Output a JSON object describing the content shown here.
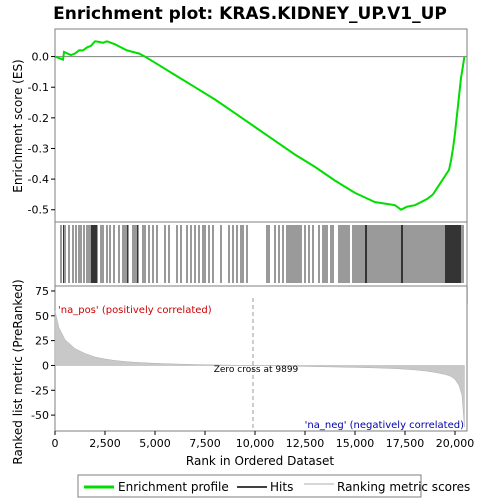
{
  "chart_data": {
    "type": "line",
    "title": "Enrichment plot: KRAS.KIDNEY_UP.V1_UP",
    "xlabel": "Rank in Ordered Dataset",
    "es_ylabel": "Enrichment score (ES)",
    "metric_ylabel": "Ranked list metric (PreRanked)",
    "x_ticks": [
      "0",
      "2,500",
      "5,000",
      "7,500",
      "10,000",
      "12,500",
      "15,000",
      "17,500",
      "20,000"
    ],
    "x_tick_values": [
      0,
      2500,
      5000,
      7500,
      10000,
      12500,
      15000,
      17500,
      20000
    ],
    "xlim": [
      0,
      20600
    ],
    "es_ylim": [
      -0.54,
      0.09
    ],
    "es_ticks": [
      "0.0",
      "-0.1",
      "-0.2",
      "-0.3",
      "-0.4",
      "-0.5"
    ],
    "es_tick_values": [
      0.0,
      -0.1,
      -0.2,
      -0.3,
      -0.4,
      -0.5
    ],
    "metric_ylim": [
      -66,
      80
    ],
    "metric_ticks": [
      "75",
      "50",
      "25",
      "0",
      "-25",
      "-50"
    ],
    "metric_tick_values": [
      75,
      50,
      25,
      0,
      -25,
      -50
    ],
    "zero_cross_rank": 9899,
    "zero_cross_label": "Zero cross at 9899",
    "pos_label": "'na_pos' (positively correlated)",
    "neg_label": "'na_neg' (negatively correlated)",
    "series": [
      {
        "name": "Enrichment profile",
        "color": "#00dd00",
        "x": [
          0,
          400,
          450,
          800,
          1000,
          1200,
          1400,
          1600,
          1800,
          2000,
          2200,
          2400,
          2600,
          2800,
          3000,
          3300,
          3600,
          3900,
          4200,
          4500,
          5000,
          6000,
          7000,
          8000,
          9000,
          10000,
          11000,
          12000,
          13000,
          14000,
          15000,
          15500,
          16000,
          16500,
          17000,
          17300,
          17600,
          18000,
          18300,
          18600,
          18900,
          19200,
          19500,
          19700,
          19800,
          19900,
          20000,
          20100,
          20200,
          20300,
          20400,
          20470
        ],
        "y": [
          0.0,
          -0.01,
          0.015,
          0.005,
          0.01,
          0.02,
          0.02,
          0.03,
          0.035,
          0.05,
          0.048,
          0.045,
          0.05,
          0.045,
          0.04,
          0.03,
          0.02,
          0.015,
          0.01,
          0.0,
          -0.02,
          -0.06,
          -0.1,
          -0.14,
          -0.185,
          -0.23,
          -0.275,
          -0.32,
          -0.36,
          -0.405,
          -0.445,
          -0.46,
          -0.475,
          -0.48,
          -0.485,
          -0.5,
          -0.49,
          -0.485,
          -0.475,
          -0.465,
          -0.45,
          -0.42,
          -0.39,
          -0.37,
          -0.34,
          -0.3,
          -0.25,
          -0.19,
          -0.13,
          -0.07,
          -0.03,
          0.0
        ]
      }
    ],
    "hits_label": "Hits",
    "metric_label": "Ranking metric scores",
    "metric_profile": {
      "x": [
        0,
        200,
        500,
        1000,
        1500,
        2000,
        2500,
        3000,
        3500,
        4000,
        5000,
        6000,
        7000,
        8000,
        9000,
        9899,
        11000,
        12000,
        13000,
        14000,
        15000,
        16000,
        17000,
        17500,
        18000,
        18500,
        19000,
        19500,
        19800,
        20000,
        20200,
        20350,
        20470
      ],
      "y": [
        55,
        38,
        26,
        17,
        12,
        8.5,
        6.5,
        5,
        4,
        3.2,
        2.2,
        1.5,
        1.0,
        0.6,
        0.3,
        0,
        -0.5,
        -0.8,
        -1.2,
        -1.6,
        -2.0,
        -2.5,
        -3.2,
        -3.8,
        -4.5,
        -5.5,
        -7,
        -9,
        -11,
        -14,
        -20,
        -30,
        -62
      ]
    },
    "hits": [
      300,
      420,
      500,
      700,
      900,
      1050,
      1200,
      1300,
      1450,
      1600,
      1700,
      1800,
      1850,
      1900,
      1950,
      2000,
      2050,
      2100,
      2300,
      2400,
      2600,
      2750,
      2950,
      3200,
      3400,
      3500,
      3600,
      3650,
      3900,
      4000,
      4100,
      4150,
      4400,
      4500,
      4700,
      4900,
      5100,
      5500,
      5700,
      6100,
      6300,
      6600,
      6800,
      7000,
      7200,
      7400,
      7500,
      7700,
      7900,
      8300,
      8700,
      8900,
      9100,
      9300,
      9400,
      9600,
      10600,
      10700,
      11000,
      11200,
      11400,
      11600,
      11700,
      11800,
      11900,
      12000,
      12100,
      12200,
      12300,
      12500,
      12700,
      12900,
      13200,
      13400,
      13500,
      13600,
      13800,
      13900,
      14200,
      14300,
      14400,
      14500,
      14600,
      14700,
      14900,
      15000,
      15100,
      15200,
      15300,
      15400,
      15500,
      15550,
      15600,
      15700,
      15800,
      15900,
      16000,
      16100,
      16200,
      16300,
      16400,
      16500,
      16600,
      16700,
      16800,
      16900,
      17000,
      17100,
      17200,
      17300,
      17350,
      17400,
      17500,
      17600,
      17700,
      17800,
      17900,
      18000,
      18100,
      18200,
      18300,
      18400,
      18500,
      18600,
      18700,
      18800,
      18900,
      19000,
      19100,
      19200,
      19300,
      19400,
      19500,
      19550,
      19600,
      19650,
      19700,
      19750,
      19800,
      19850,
      19900,
      19950,
      20000,
      20050,
      20100,
      20150,
      20200,
      20250,
      20300,
      20400
    ]
  },
  "legend": {
    "profile": "Enrichment profile",
    "hits": "Hits",
    "metric": "Ranking metric scores"
  }
}
